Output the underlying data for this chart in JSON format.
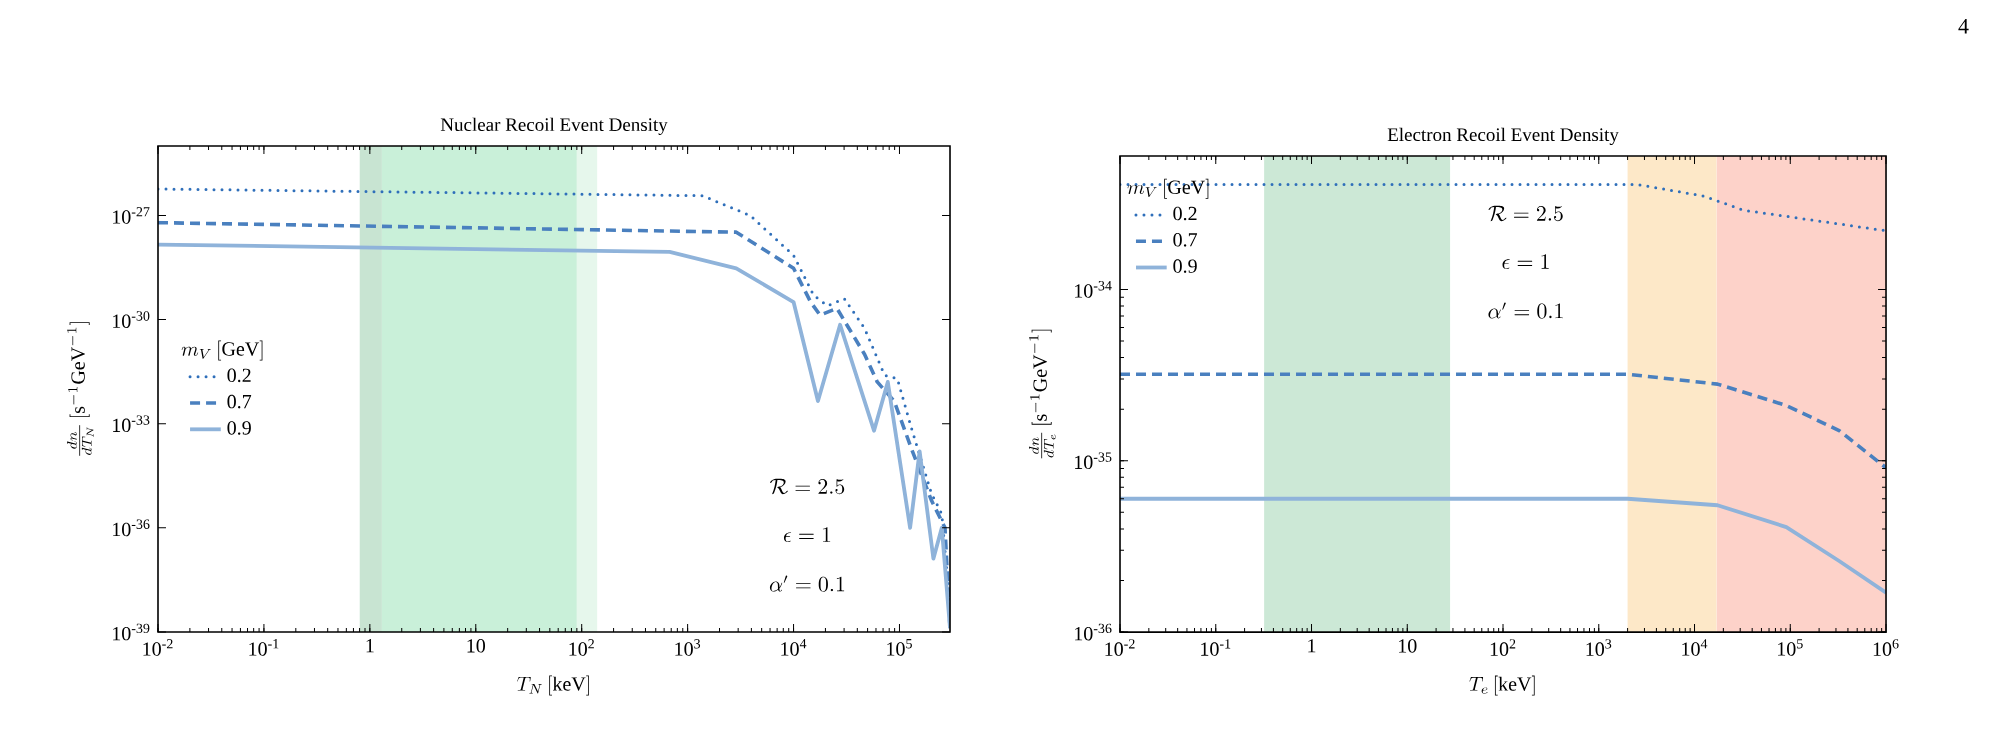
{
  "chart_data": [
    {
      "type": "line",
      "title": "Nuclear Recoil Event Density",
      "xlabel": "T_N\\,[\\mathrm{keV}]",
      "ylabel": "\\frac{dn}{dT_N}\\,[\\mathrm{s}^{-1}\\mathrm{GeV}^{-1}]",
      "legend_title": "m_V\\,[\\mathrm{GeV}]",
      "log": "xy",
      "xlim": [
        0.01,
        300000
      ],
      "ylim": [
        1e-39,
        1e-25
      ],
      "xticks": [
        {
          "value": 0.01,
          "label": "10$^{-2}$"
        },
        {
          "value": 0.1,
          "label": "10$^{-1}$"
        },
        1,
        10,
        {
          "value": 100,
          "label": "10$^{2}$"
        },
        {
          "value": 1000,
          "label": "10$^{3}$"
        },
        {
          "value": 10000,
          "label": "10$^{4}$"
        },
        {
          "value": 100000,
          "label": "10$^{5}$"
        }
      ],
      "yticks": [
        {
          "value": 1e-39,
          "label": "10$^{-39}$"
        },
        {
          "value": 1e-36,
          "label": "10$^{-36}$"
        },
        {
          "value": 1e-33,
          "label": "10$^{-33}$"
        },
        {
          "value": 1e-30,
          "label": "10$^{-30}$"
        },
        {
          "value": 1e-27,
          "label": "10$^{-27}$"
        }
      ],
      "grid": false,
      "legend": "left",
      "bands": [
        {
          "axis": "x",
          "from": 0.8,
          "to": 1.3,
          "color": "#c8e4d2"
        },
        {
          "axis": "x",
          "from": 1.3,
          "to": 90,
          "color": "#c9f0d9"
        },
        {
          "axis": "x",
          "from": 90,
          "to": 140,
          "color": "#e6f7ec"
        }
      ],
      "annotations": [
        "\\mathcal{R} = 2.5",
        "\\epsilon = 1",
        "\\alpha' = 0.1"
      ],
      "series": [
        {
          "name": "0.2",
          "color": "#2f6fba",
          "line_style": "dotted",
          "x": [
            0.01,
            1380,
            3890,
            10000,
            15500,
            20900,
            30200,
            46800,
            72400,
            95500,
            129000,
            200000,
            251000,
            300000
          ],
          "values": [
            5.8e-27,
            3.7e-27,
            1e-27,
            7.1e-29,
            5e-30,
            2.5e-30,
            4e-30,
            5.6e-31,
            2.5e-32,
            2e-32,
            7.9e-34,
            1e-35,
            2.5e-36,
            5e-39
          ]
        },
        {
          "name": "0.7",
          "color": "#4a80bf",
          "line_style": "dashed",
          "x": [
            0.01,
            2880,
            10000,
            14500,
            17800,
            25700,
            46800,
            61700,
            89100,
            129000,
            200000,
            269000,
            300000
          ],
          "values": [
            6.2e-28,
            3.3e-28,
            3e-29,
            3.2e-30,
            1.35e-30,
            2.1e-30,
            1e-31,
            1.6e-32,
            4.5e-33,
            2e-34,
            6.3e-36,
            1e-36,
            1.3e-39
          ]
        },
        {
          "name": "0.9",
          "color": "#8fb3da",
          "line_style": "solid",
          "x": [
            0.01,
            676,
            2880,
            10000,
            17000,
            27500,
            57500,
            77600,
            126000,
            155000,
            209000,
            251000,
            300000
          ],
          "values": [
            1.45e-28,
            8.9e-29,
            3e-29,
            3.2e-30,
            4.5e-33,
            7.1e-31,
            6.3e-34,
            1.6e-32,
            1e-36,
            1.6e-34,
            1.3e-37,
            1e-36,
            1.3e-39
          ]
        }
      ]
    },
    {
      "type": "line",
      "title": "Electron Recoil Event Density",
      "xlabel": "T_e\\,[\\mathrm{keV}]",
      "ylabel": "\\frac{dn}{dT_e}\\,[\\mathrm{s}^{-1}\\mathrm{GeV}^{-1}]",
      "legend_title": "m_V\\,[\\mathrm{GeV}]",
      "log": "xy",
      "xlim": [
        0.01,
        1000000
      ],
      "ylim": [
        1e-36,
        6e-34
      ],
      "xticks": [
        {
          "value": 0.01,
          "label": "10$^{-2}$"
        },
        {
          "value": 0.1,
          "label": "10$^{-1}$"
        },
        1,
        10,
        {
          "value": 100,
          "label": "10$^{2}$"
        },
        {
          "value": 1000,
          "label": "10$^{3}$"
        },
        {
          "value": 10000,
          "label": "10$^{4}$"
        },
        {
          "value": 100000,
          "label": "10$^{5}$"
        },
        {
          "value": 1000000,
          "label": "10$^{6}$"
        }
      ],
      "yticks": [
        {
          "value": 1e-36,
          "label": "10$^{-36}$"
        },
        {
          "value": 1e-35,
          "label": "10$^{-35}$"
        },
        {
          "value": 1e-34,
          "label": "10$^{-34}$"
        }
      ],
      "grid": false,
      "legend": "top left",
      "bands": [
        {
          "axis": "x",
          "from": 0.32,
          "to": 28,
          "color": "#cce8d6"
        },
        {
          "axis": "x",
          "from": 2000,
          "to": 17000,
          "color": "#fde8c8"
        },
        {
          "axis": "x",
          "from": 17000,
          "to": 1000000,
          "color": "#fdd2c9"
        }
      ],
      "annotations": [
        "4",
        "\\mathcal{R} = 2.5",
        "\\epsilon = 1",
        "\\alpha' = 0.1"
      ],
      "series": [
        {
          "name": "0.2",
          "color": "#2f6fba",
          "line_style": "dotted",
          "x": [
            0.01,
            2500,
            12600,
            32400,
            1000000
          ],
          "values": [
            4.1e-34,
            4.1e-34,
            3.5e-34,
            2.9e-34,
            2.2e-34
          ]
        },
        {
          "name": "0.7",
          "color": "#4a80bf",
          "line_style": "dashed",
          "x": [
            0.01,
            2000,
            17400,
            91000,
            324000,
            1000000
          ],
          "values": [
            3.2e-35,
            3.2e-35,
            2.8e-35,
            2.1e-35,
            1.5e-35,
            9.1e-36
          ]
        },
        {
          "name": "0.9",
          "color": "#8fb3da",
          "line_style": "solid",
          "x": [
            0.01,
            2000,
            17400,
            91000,
            324000,
            1000000
          ],
          "values": [
            6e-36,
            6e-36,
            5.5e-36,
            4.1e-36,
            2.6e-36,
            1.7e-36
          ]
        }
      ]
    }
  ]
}
